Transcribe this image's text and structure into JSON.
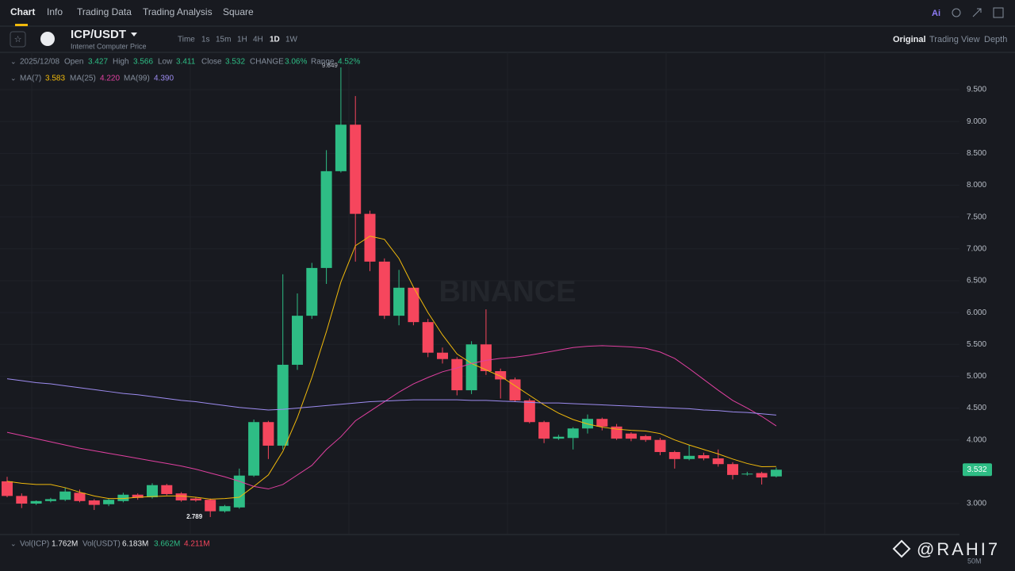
{
  "nav": {
    "tabs": [
      "Chart",
      "Info",
      "Trading Data",
      "Trading Analysis",
      "Square"
    ],
    "ai": "Ai"
  },
  "toolbar": {
    "symbol": "ICP/USDT",
    "subtitle": "Internet Computer Price",
    "intervals": [
      "Time",
      "1s",
      "15m",
      "1H",
      "4H",
      "1D",
      "1W"
    ],
    "views": [
      "Original",
      "Trading View",
      "Depth"
    ]
  },
  "chart_data": {
    "type": "candlestick",
    "legend": {
      "date": "2025/12/08",
      "open": "Open",
      "high": "High",
      "low": "Low",
      "close": "Close",
      "change": "CHANGE",
      "change_value": "3.06%",
      "range": "Range",
      "range_value": "4.52%"
    },
    "open": [
      3.35,
      3.12,
      3.0,
      3.04,
      3.06,
      3.17,
      3.05,
      2.99,
      3.04,
      3.14,
      3.1,
      3.29,
      3.16,
      3.08,
      3.06,
      2.88,
      2.94,
      3.44,
      4.28,
      3.91,
      5.18,
      5.95,
      6.7,
      8.22,
      8.95,
      7.55,
      6.8,
      5.95,
      6.39,
      5.85,
      5.37,
      5.27,
      4.78,
      5.5,
      5.08,
      4.95,
      4.62,
      4.28,
      4.02,
      4.03,
      4.18,
      4.33,
      4.21,
      4.1,
      4.06,
      4.0,
      3.81,
      3.7,
      3.76,
      3.71,
      3.62,
      3.46,
      3.48,
      3.427
    ],
    "high": [
      3.42,
      3.16,
      3.05,
      3.09,
      3.25,
      3.22,
      3.07,
      3.08,
      3.17,
      3.16,
      3.32,
      3.31,
      3.18,
      3.1,
      3.08,
      2.98,
      3.55,
      4.32,
      4.3,
      6.6,
      6.3,
      6.78,
      8.55,
      9.849,
      9.4,
      7.6,
      6.85,
      6.67,
      6.4,
      5.9,
      5.45,
      5.3,
      5.55,
      6.05,
      5.12,
      4.98,
      4.65,
      4.3,
      4.08,
      4.2,
      4.4,
      4.35,
      4.25,
      4.12,
      4.08,
      4.03,
      3.83,
      3.92,
      3.8,
      3.85,
      3.65,
      3.5,
      3.5,
      3.566
    ],
    "low": [
      3.1,
      2.93,
      2.98,
      3.02,
      3.04,
      3.02,
      2.9,
      2.96,
      3.02,
      3.06,
      3.08,
      3.13,
      3.03,
      3.03,
      2.789,
      2.86,
      2.92,
      3.42,
      3.7,
      3.85,
      5.1,
      5.9,
      6.45,
      8.2,
      6.8,
      6.65,
      5.9,
      5.8,
      5.8,
      5.3,
      5.2,
      4.7,
      4.72,
      5.02,
      4.65,
      4.6,
      4.26,
      3.95,
      4.0,
      3.85,
      4.1,
      4.15,
      4.0,
      3.98,
      3.97,
      3.76,
      3.55,
      3.68,
      3.68,
      3.58,
      3.38,
      3.44,
      3.3,
      3.411
    ],
    "close": [
      3.12,
      3.0,
      3.04,
      3.07,
      3.19,
      3.04,
      2.98,
      3.06,
      3.14,
      3.09,
      3.29,
      3.15,
      3.05,
      3.05,
      2.88,
      2.96,
      3.44,
      4.28,
      3.91,
      5.18,
      5.95,
      6.7,
      8.22,
      8.95,
      7.55,
      6.8,
      5.95,
      6.39,
      5.85,
      5.37,
      5.27,
      4.78,
      5.5,
      5.08,
      4.95,
      4.62,
      4.28,
      4.02,
      4.05,
      4.18,
      4.33,
      4.21,
      4.02,
      4.02,
      4.0,
      3.81,
      3.7,
      3.75,
      3.71,
      3.62,
      3.45,
      3.47,
      3.41,
      3.532
    ],
    "up_color": "#2ebd85",
    "down_color": "#f6465d",
    "series": [
      {
        "name": "MA(7)",
        "color": "#f0b90b",
        "value_label": "3.583",
        "values": [
          3.35,
          3.32,
          3.3,
          3.3,
          3.25,
          3.18,
          3.12,
          3.08,
          3.08,
          3.1,
          3.11,
          3.12,
          3.12,
          3.1,
          3.07,
          3.08,
          3.1,
          3.27,
          3.45,
          3.82,
          4.35,
          4.98,
          5.7,
          6.48,
          7.05,
          7.2,
          7.15,
          6.85,
          6.4,
          6.0,
          5.65,
          5.35,
          5.2,
          5.1,
          5.0,
          4.85,
          4.7,
          4.55,
          4.42,
          4.32,
          4.25,
          4.2,
          4.17,
          4.15,
          4.14,
          4.1,
          4.0,
          3.92,
          3.85,
          3.78,
          3.7,
          3.63,
          3.58,
          3.583
        ]
      },
      {
        "name": "MA(25)",
        "color": "#e040a0",
        "value_label": "4.220",
        "values": [
          4.12,
          4.07,
          4.02,
          3.97,
          3.92,
          3.87,
          3.83,
          3.79,
          3.75,
          3.71,
          3.67,
          3.63,
          3.59,
          3.54,
          3.48,
          3.42,
          3.35,
          3.27,
          3.23,
          3.3,
          3.45,
          3.6,
          3.85,
          4.05,
          4.3,
          4.45,
          4.6,
          4.75,
          4.88,
          4.98,
          5.07,
          5.13,
          5.2,
          5.25,
          5.28,
          5.3,
          5.33,
          5.37,
          5.41,
          5.45,
          5.47,
          5.48,
          5.47,
          5.46,
          5.44,
          5.38,
          5.28,
          5.12,
          4.95,
          4.78,
          4.62,
          4.5,
          4.37,
          4.22
        ]
      },
      {
        "name": "MA(99)",
        "color": "#9d8cf0",
        "value_label": "4.390",
        "values": [
          4.96,
          4.93,
          4.9,
          4.88,
          4.85,
          4.82,
          4.79,
          4.76,
          4.73,
          4.71,
          4.68,
          4.65,
          4.62,
          4.6,
          4.57,
          4.54,
          4.51,
          4.49,
          4.47,
          4.48,
          4.5,
          4.52,
          4.54,
          4.56,
          4.58,
          4.6,
          4.61,
          4.62,
          4.63,
          4.63,
          4.63,
          4.63,
          4.62,
          4.62,
          4.61,
          4.6,
          4.59,
          4.58,
          4.58,
          4.57,
          4.56,
          4.55,
          4.54,
          4.53,
          4.52,
          4.51,
          4.5,
          4.49,
          4.47,
          4.46,
          4.44,
          4.43,
          4.41,
          4.39
        ]
      }
    ],
    "ylim": [
      2.527,
      10.086
    ],
    "yticks": [
      {
        "value": 3,
        "label": "3.000"
      },
      {
        "value": 3.5,
        "label": "3.500"
      },
      {
        "value": 4,
        "label": "4.000"
      },
      {
        "value": 4.5,
        "label": "4.500"
      },
      {
        "value": 5,
        "label": "5.000"
      },
      {
        "value": 5.5,
        "label": "5.500"
      },
      {
        "value": 6,
        "label": "6.000"
      },
      {
        "value": 6.5,
        "label": "6.500"
      },
      {
        "value": 7,
        "label": "7.000"
      },
      {
        "value": 7.5,
        "label": "7.500"
      },
      {
        "value": 8,
        "label": "8.000"
      },
      {
        "value": 8.5,
        "label": "8.500"
      },
      {
        "value": 9,
        "label": "9.000"
      },
      {
        "value": 9.5,
        "label": "9.500"
      }
    ],
    "grid": true,
    "watermark": "BINANCE",
    "volume": {
      "vol_icp": "Vol(ICP)",
      "vol_icp_value": "1.762M",
      "vol_usdt": "Vol(USDT)",
      "vol_usdt_value": "6.183M",
      "ma_a": "3.662M",
      "ma_b": "4.211M",
      "tick": "50M"
    }
  },
  "credit": "@RAHI7"
}
